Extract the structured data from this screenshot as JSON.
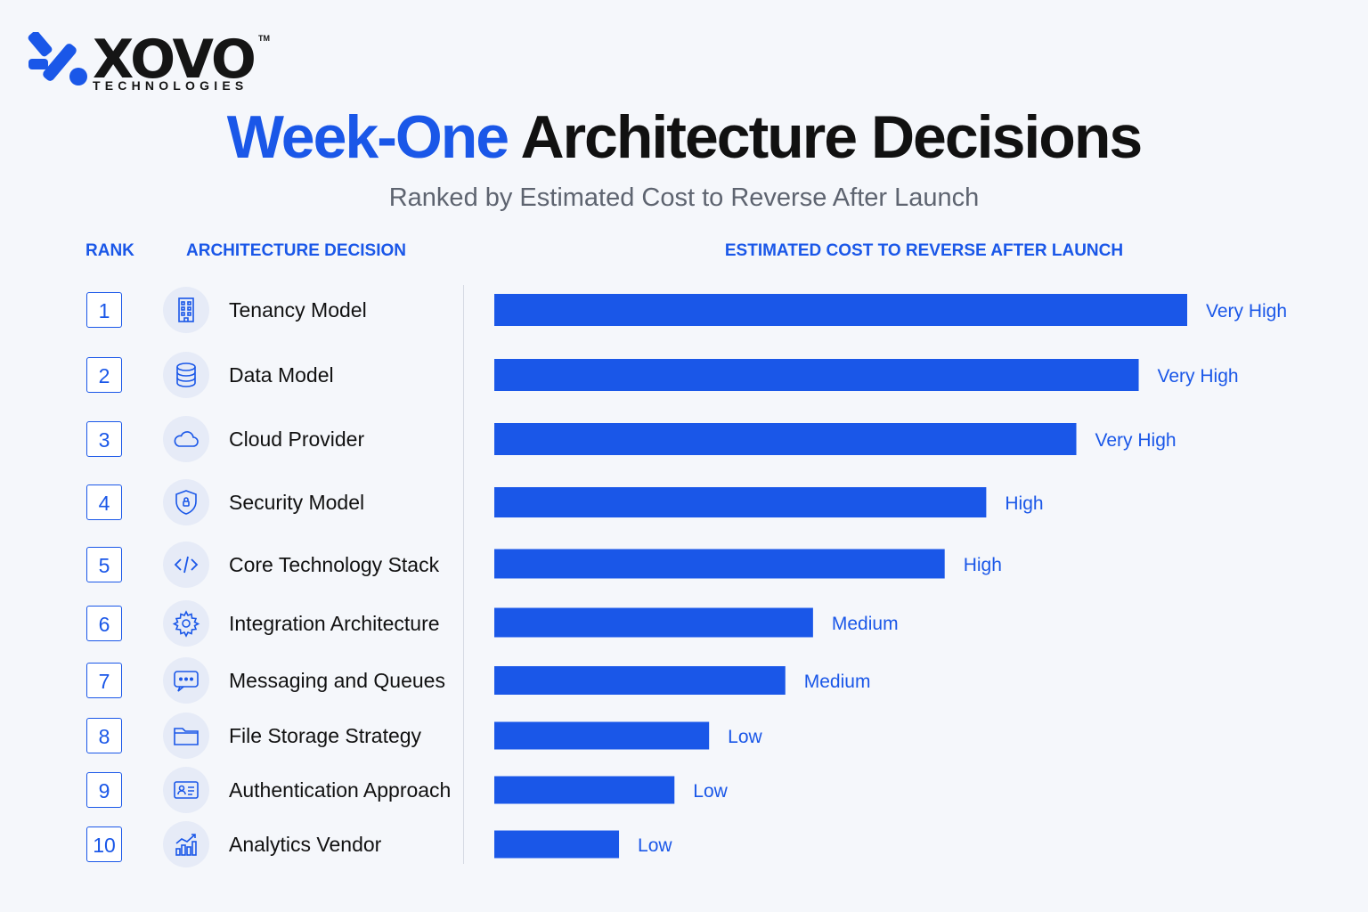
{
  "logo": {
    "wordmark": "XOVO",
    "tagline": "TECHNOLOGIES",
    "trademark": "TM"
  },
  "title": {
    "accent": "Week-One",
    "rest": "Architecture Decisions"
  },
  "subtitle": "Ranked by Estimated Cost to Reverse After Launch",
  "headers": {
    "rank": "RANK",
    "decision": "ARCHITECTURE DECISION",
    "cost": "ESTIMATED COST TO REVERSE AFTER LAUNCH"
  },
  "rows": [
    {
      "rank": "1",
      "decision": "Tenancy Model",
      "icon": "building-icon"
    },
    {
      "rank": "2",
      "decision": "Data Model",
      "icon": "database-icon"
    },
    {
      "rank": "3",
      "decision": "Cloud Provider",
      "icon": "cloud-icon"
    },
    {
      "rank": "4",
      "decision": "Security Model",
      "icon": "shield-lock-icon"
    },
    {
      "rank": "5",
      "decision": "Core Technology Stack",
      "icon": "code-icon"
    },
    {
      "rank": "6",
      "decision": "Integration Architecture",
      "icon": "gear-icon"
    },
    {
      "rank": "7",
      "decision": "Messaging and Queues",
      "icon": "chat-icon"
    },
    {
      "rank": "8",
      "decision": "File Storage Strategy",
      "icon": "folder-icon"
    },
    {
      "rank": "9",
      "decision": "Authentication Approach",
      "icon": "id-card-icon"
    },
    {
      "rank": "10",
      "decision": "Analytics Vendor",
      "icon": "analytics-icon"
    }
  ],
  "colors": {
    "accent": "#1a57e8",
    "text": "#111111",
    "muted": "#5e6470",
    "background": "#f5f7fb"
  },
  "chart_data": {
    "type": "bar",
    "orientation": "horizontal",
    "title": "Week-One Architecture Decisions",
    "subtitle": "Ranked by Estimated Cost to Reverse After Launch",
    "xlabel": "ESTIMATED COST TO REVERSE AFTER LAUNCH",
    "ylabel": "ARCHITECTURE DECISION",
    "categories": [
      "Tenancy Model",
      "Data Model",
      "Cloud Provider",
      "Security Model",
      "Core Technology Stack",
      "Integration Architecture",
      "Messaging and Queues",
      "File Storage Strategy",
      "Authentication Approach",
      "Analytics Vendor"
    ],
    "values": [
      100,
      93,
      84,
      71,
      65,
      46,
      42,
      31,
      26,
      18
    ],
    "value_labels": [
      "Very High",
      "Very High",
      "Very High",
      "High",
      "High",
      "Medium",
      "Medium",
      "Low",
      "Low",
      "Low"
    ],
    "xlim": [
      0,
      100
    ],
    "grid": false,
    "legend": "none"
  }
}
